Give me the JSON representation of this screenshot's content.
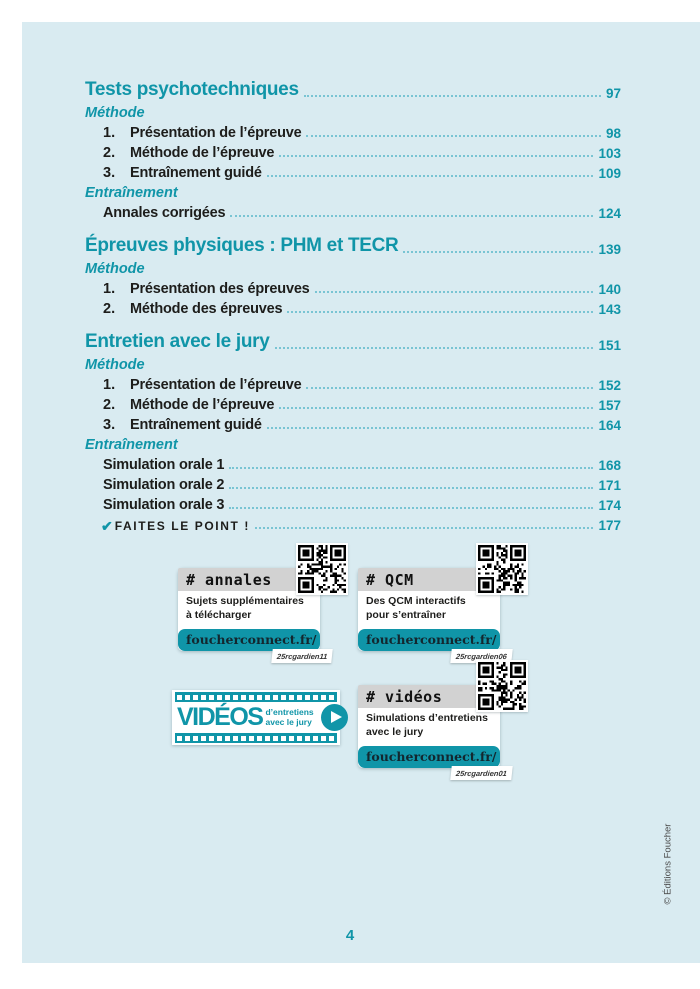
{
  "colors": {
    "accent_teal": "#1095a8",
    "panel_background": "#d9ebf1",
    "leader_dots": "#79c4d3",
    "body_text": "#1d1d1b",
    "hash_bar_gray": "#d2d2d2"
  },
  "toc": {
    "rows": [
      {
        "type": "h1",
        "label": "Tests psychotechniques",
        "page": "97"
      },
      {
        "type": "sub",
        "label": "Méthode"
      },
      {
        "type": "item",
        "num": "1.",
        "label": "Présentation de l’épreuve",
        "page": "98"
      },
      {
        "type": "item",
        "num": "2.",
        "label": "Méthode de l’épreuve",
        "page": "103"
      },
      {
        "type": "item",
        "num": "3.",
        "label": "Entraînement guidé",
        "page": "109"
      },
      {
        "type": "sub",
        "label": "Entraînement"
      },
      {
        "type": "plain",
        "label": "Annales corrigées",
        "page": "124"
      },
      {
        "type": "h1",
        "label": "Épreuves physiques : PHM et TECR",
        "page": "139"
      },
      {
        "type": "sub",
        "label": "Méthode"
      },
      {
        "type": "item",
        "num": "1.",
        "label": "Présentation des épreuves",
        "page": "140"
      },
      {
        "type": "item",
        "num": "2.",
        "label": "Méthode des épreuves",
        "page": "143"
      },
      {
        "type": "h1",
        "label": "Entretien avec le jury",
        "page": "151"
      },
      {
        "type": "sub",
        "label": "Méthode"
      },
      {
        "type": "item",
        "num": "1.",
        "label": "Présentation de l’épreuve",
        "page": "152"
      },
      {
        "type": "item",
        "num": "2.",
        "label": "Méthode de l’épreuve",
        "page": "157"
      },
      {
        "type": "item",
        "num": "3.",
        "label": "Entraînement guidé",
        "page": "164"
      },
      {
        "type": "sub",
        "label": "Entraînement"
      },
      {
        "type": "plain",
        "label": "Simulation orale 1",
        "page": "168"
      },
      {
        "type": "plain",
        "label": "Simulation orale 2",
        "page": "171"
      },
      {
        "type": "plain",
        "label": "Simulation orale 3",
        "page": "174"
      },
      {
        "type": "check",
        "check": "✔",
        "label": "FAITES LE POINT !",
        "page": "177"
      }
    ]
  },
  "widgets": {
    "annales": {
      "hash": "# annales",
      "line1": "Sujets supplémentaires",
      "line2": "à télécharger",
      "site": "foucherconnect.fr/",
      "code": "25rcgardien11"
    },
    "qcm": {
      "hash": "# QCM",
      "line1": "Des QCM interactifs",
      "line2": "pour s’entraîner",
      "site": "foucherconnect.fr/",
      "code": "25rcgardien06"
    },
    "videos": {
      "hash": "# vidéos",
      "line1": "Simulations d’entretiens",
      "line2": "avec le jury",
      "site": "foucherconnect.fr/",
      "code": "25rcgardien01"
    },
    "video_badge": {
      "title": "VIDÉOS",
      "line1": "d’entretiens",
      "line2": "avec le jury"
    }
  },
  "footer": {
    "page_number": "4",
    "copyright": "© Éditions Foucher"
  }
}
